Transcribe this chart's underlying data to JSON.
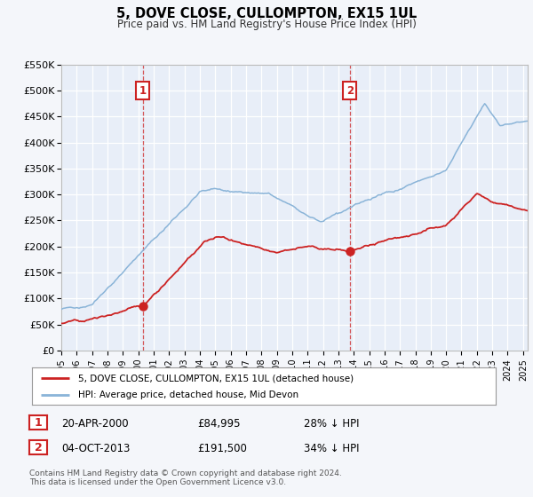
{
  "title": "5, DOVE CLOSE, CULLOMPTON, EX15 1UL",
  "subtitle": "Price paid vs. HM Land Registry's House Price Index (HPI)",
  "hpi_color": "#8ab4d8",
  "price_color": "#cc2222",
  "bg_color": "#f4f6fa",
  "plot_bg": "#e8eef8",
  "grid_color": "#d0d8e8",
  "ylim": [
    0,
    550000
  ],
  "yticks": [
    0,
    50000,
    100000,
    150000,
    200000,
    250000,
    300000,
    350000,
    400000,
    450000,
    500000,
    550000
  ],
  "ytick_labels": [
    "£0",
    "£50K",
    "£100K",
    "£150K",
    "£200K",
    "£250K",
    "£300K",
    "£350K",
    "£400K",
    "£450K",
    "£500K",
    "£550K"
  ],
  "xlim_start": 1995.0,
  "xlim_end": 2025.3,
  "xtick_years": [
    1995,
    1996,
    1997,
    1998,
    1999,
    2000,
    2001,
    2002,
    2003,
    2004,
    2005,
    2006,
    2007,
    2008,
    2009,
    2010,
    2011,
    2012,
    2013,
    2014,
    2015,
    2016,
    2017,
    2018,
    2019,
    2020,
    2021,
    2022,
    2023,
    2024,
    2025
  ],
  "vline1_x": 2000.29,
  "vline2_x": 2013.75,
  "marker1_x": 2000.29,
  "marker1_y": 84995,
  "marker2_x": 2013.75,
  "marker2_y": 191500,
  "legend_label_price": "5, DOVE CLOSE, CULLOMPTON, EX15 1UL (detached house)",
  "legend_label_hpi": "HPI: Average price, detached house, Mid Devon",
  "table_row1": [
    "1",
    "20-APR-2000",
    "£84,995",
    "28% ↓ HPI"
  ],
  "table_row2": [
    "2",
    "04-OCT-2013",
    "£191,500",
    "34% ↓ HPI"
  ],
  "footer1": "Contains HM Land Registry data © Crown copyright and database right 2024.",
  "footer2": "This data is licensed under the Open Government Licence v3.0."
}
